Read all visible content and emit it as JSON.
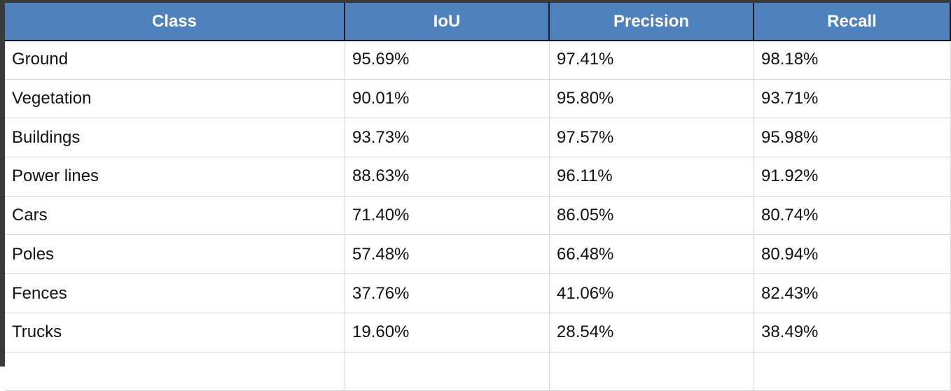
{
  "table": {
    "header": [
      "Class",
      "IoU",
      "Precision",
      "Recall"
    ],
    "rows": [
      [
        "Ground",
        "95.69%",
        "97.41%",
        "98.18%"
      ],
      [
        "Vegetation",
        "90.01%",
        "95.80%",
        "93.71%"
      ],
      [
        "Buildings",
        "93.73%",
        "97.57%",
        "95.98%"
      ],
      [
        "Power lines",
        "88.63%",
        "96.11%",
        "91.92%"
      ],
      [
        "Cars",
        "71.40%",
        "86.05%",
        "80.74%"
      ],
      [
        "Poles",
        "57.48%",
        "66.48%",
        "80.94%"
      ],
      [
        "Fences",
        "37.76%",
        "41.06%",
        "82.43%"
      ],
      [
        "Trucks",
        "19.60%",
        "28.54%",
        "38.49%"
      ]
    ]
  }
}
